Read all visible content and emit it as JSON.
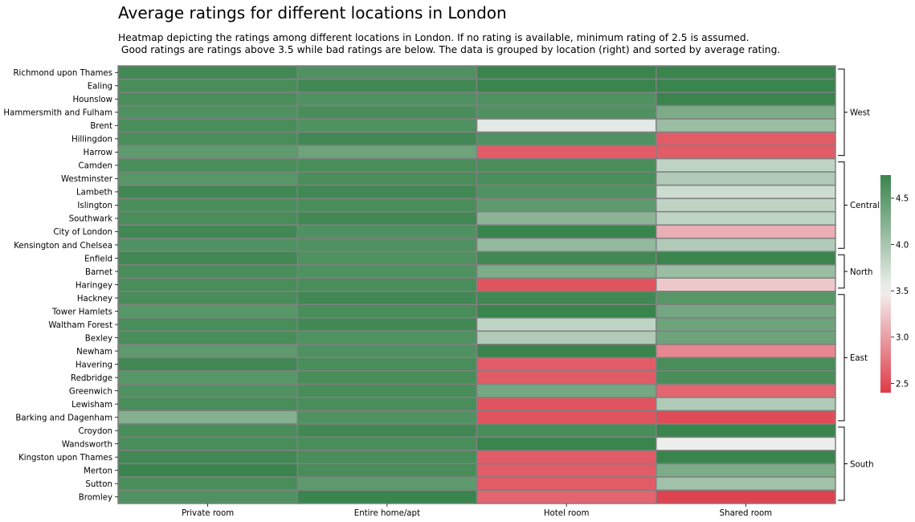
{
  "chart_data": {
    "type": "heatmap",
    "title": "Average ratings for different locations in London",
    "subtitle": "Heatmap depicting the ratings among different locations in London. If no rating is available, minimum rating of 2.5 is assumed.\n Good ratings are ratings above 3.5 while bad ratings are below. The data is grouped by location (right) and sorted by average rating.",
    "columns": [
      "Private room",
      "Entire home/apt",
      "Hotel room",
      "Shared room"
    ],
    "rows": [
      "Richmond upon Thames",
      "Ealing",
      "Hounslow",
      "Hammersmith and Fulham",
      "Brent",
      "Hillingdon",
      "Harrow",
      "Camden",
      "Westminster",
      "Lambeth",
      "Islington",
      "Southwark",
      "City of London",
      "Kensington and Chelsea",
      "Enfield",
      "Barnet",
      "Haringey",
      "Hackney",
      "Tower Hamlets",
      "Waltham Forest",
      "Bexley",
      "Newham",
      "Havering",
      "Redbridge",
      "Greenwich",
      "Lewisham",
      "Barking and Dagenham",
      "Croydon",
      "Wandsworth",
      "Kingston upon Thames",
      "Merton",
      "Sutton",
      "Bromley"
    ],
    "values": [
      [
        4.7,
        4.6,
        4.8,
        4.8
      ],
      [
        4.65,
        4.7,
        4.8,
        4.8
      ],
      [
        4.65,
        4.6,
        4.6,
        4.8
      ],
      [
        4.6,
        4.65,
        4.6,
        4.3
      ],
      [
        4.65,
        4.6,
        3.6,
        4.1
      ],
      [
        4.65,
        4.7,
        4.6,
        2.6
      ],
      [
        4.5,
        4.4,
        2.6,
        2.6
      ],
      [
        4.65,
        4.65,
        4.65,
        3.85
      ],
      [
        4.55,
        4.65,
        4.65,
        3.95
      ],
      [
        4.7,
        4.7,
        4.6,
        3.75
      ],
      [
        4.65,
        4.65,
        4.5,
        3.85
      ],
      [
        4.65,
        4.7,
        4.2,
        3.85
      ],
      [
        4.7,
        4.6,
        4.8,
        3.1
      ],
      [
        4.6,
        4.6,
        4.15,
        3.95
      ],
      [
        4.7,
        4.6,
        4.7,
        4.8
      ],
      [
        4.65,
        4.6,
        4.3,
        4.1
      ],
      [
        4.65,
        4.65,
        2.55,
        3.25
      ],
      [
        4.65,
        4.7,
        4.7,
        4.55
      ],
      [
        4.55,
        4.65,
        4.8,
        4.35
      ],
      [
        4.65,
        4.7,
        3.85,
        4.4
      ],
      [
        4.65,
        4.6,
        3.95,
        4.4
      ],
      [
        4.5,
        4.6,
        4.8,
        2.85
      ],
      [
        4.7,
        4.65,
        2.6,
        4.65
      ],
      [
        4.55,
        4.65,
        2.6,
        4.65
      ],
      [
        4.6,
        4.65,
        4.35,
        2.65
      ],
      [
        4.65,
        4.65,
        2.55,
        3.95
      ],
      [
        4.25,
        4.6,
        2.55,
        2.5
      ],
      [
        4.65,
        4.7,
        4.65,
        4.8
      ],
      [
        4.65,
        4.65,
        4.8,
        3.55
      ],
      [
        4.7,
        4.65,
        2.6,
        4.8
      ],
      [
        4.75,
        4.65,
        2.6,
        4.3
      ],
      [
        4.65,
        4.5,
        2.6,
        4.05
      ],
      [
        4.6,
        4.75,
        2.65,
        2.45
      ]
    ],
    "groups": [
      {
        "name": "West",
        "start": 0,
        "end": 6
      },
      {
        "name": "Central",
        "start": 7,
        "end": 13
      },
      {
        "name": "North",
        "start": 14,
        "end": 16
      },
      {
        "name": "East",
        "start": 17,
        "end": 26
      },
      {
        "name": "South",
        "start": 27,
        "end": 32
      }
    ],
    "colorbar": {
      "range": [
        2.4,
        4.75
      ],
      "ticks": [
        2.5,
        3.0,
        3.5,
        4.0,
        4.5
      ],
      "tick_labels": [
        "2.5",
        "3.0",
        "3.5",
        "4.0",
        "4.5"
      ],
      "low_color": "#dd3b48",
      "mid_color": "#f2f2f2",
      "high_color": "#3a844d",
      "midpoint": 3.5
    },
    "cell_border_color": "#808080"
  }
}
